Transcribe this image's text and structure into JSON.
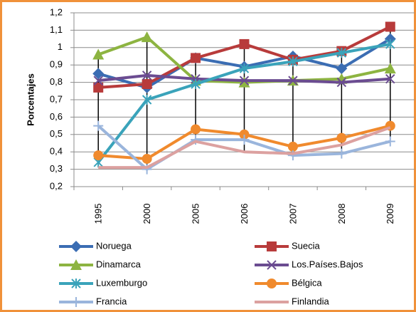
{
  "chart_data": {
    "type": "line",
    "y_label": "Porcentajes",
    "categories": [
      "1995",
      "2000",
      "2005",
      "2006",
      "2007",
      "2008",
      "2009"
    ],
    "ylim": [
      0.2,
      1.2
    ],
    "yticks": [
      {
        "value": 0.2,
        "label": "0,2"
      },
      {
        "value": 0.3,
        "label": "0,3"
      },
      {
        "value": 0.4,
        "label": "0,4"
      },
      {
        "value": 0.5,
        "label": "0,5"
      },
      {
        "value": 0.6,
        "label": "0,6"
      },
      {
        "value": 0.7,
        "label": "0,7"
      },
      {
        "value": 0.8,
        "label": "0,8"
      },
      {
        "value": 0.9,
        "label": "0,9"
      },
      {
        "value": 1,
        "label": "1"
      },
      {
        "value": 1.1,
        "label": "1,1"
      },
      {
        "value": 1.2,
        "label": "1,2"
      }
    ],
    "grid": true,
    "high_low_lines": true,
    "series": [
      {
        "name": "Noruega",
        "color": "#3b6db3",
        "marker": "diamond",
        "values": [
          0.85,
          0.77,
          0.94,
          0.89,
          0.95,
          0.88,
          1.05
        ]
      },
      {
        "name": "Suecia",
        "color": "#b83b3b",
        "marker": "square",
        "values": [
          0.77,
          0.79,
          0.94,
          1.02,
          0.93,
          0.98,
          1.12
        ]
      },
      {
        "name": "Dinamarca",
        "color": "#8db441",
        "marker": "triangle",
        "values": [
          0.96,
          1.06,
          0.81,
          0.8,
          0.81,
          0.82,
          0.88
        ]
      },
      {
        "name": "Los.Países.Bajos",
        "color": "#6b4c91",
        "marker": "x",
        "values": [
          0.81,
          0.84,
          0.82,
          0.81,
          0.81,
          0.8,
          0.82
        ]
      },
      {
        "name": "Luxemburgo",
        "color": "#3aa3ba",
        "marker": "star",
        "values": [
          0.34,
          0.7,
          0.79,
          0.88,
          0.92,
          0.97,
          1.02
        ]
      },
      {
        "name": "Bélgica",
        "color": "#f08a2d",
        "marker": "circle",
        "values": [
          0.38,
          0.36,
          0.53,
          0.5,
          0.43,
          0.48,
          0.55
        ]
      },
      {
        "name": "Francia",
        "color": "#9ab5dc",
        "marker": "plus",
        "values": [
          0.55,
          0.3,
          0.47,
          0.47,
          0.38,
          0.39,
          0.46
        ]
      },
      {
        "name": "Finlandia",
        "color": "#dca1a0",
        "marker": "none",
        "values": [
          0.31,
          0.31,
          0.46,
          0.4,
          0.39,
          0.44,
          0.54
        ]
      }
    ]
  }
}
